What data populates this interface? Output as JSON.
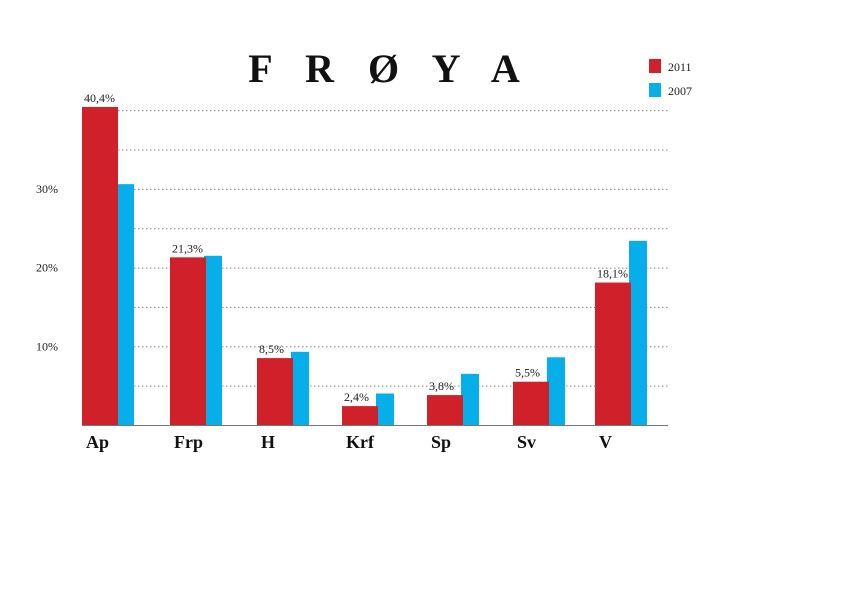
{
  "chart_data": {
    "type": "bar",
    "title": "F R Ø Y A",
    "categories": [
      "Ap",
      "Frp",
      "H",
      "Krf",
      "Sp",
      "Sv",
      "V"
    ],
    "series": [
      {
        "name": "2011",
        "color": "#d0202a",
        "values": [
          40.4,
          21.3,
          8.5,
          2.4,
          3.8,
          5.5,
          18.1
        ]
      },
      {
        "name": "2007",
        "color": "#06aeea",
        "values": [
          30.6,
          21.5,
          9.3,
          4.0,
          6.5,
          8.6,
          23.4
        ]
      }
    ],
    "data_labels": [
      "40,4%",
      "21,3%",
      "8,5%",
      "2,4%",
      "3,8%",
      "5,5%",
      "18,1%"
    ],
    "yticks": [
      {
        "value": 10,
        "label": "10%"
      },
      {
        "value": 20,
        "label": "20%"
      },
      {
        "value": 30,
        "label": "30%"
      }
    ],
    "gridlines": [
      5,
      10,
      15,
      20,
      25,
      30,
      35,
      40
    ],
    "ylim": [
      0,
      40.4
    ],
    "legend": [
      {
        "label": "2011",
        "color": "#d0202a"
      },
      {
        "label": "2007",
        "color": "#06aeea"
      }
    ],
    "legend_position": "top-right",
    "xlabel": "",
    "ylabel": ""
  }
}
